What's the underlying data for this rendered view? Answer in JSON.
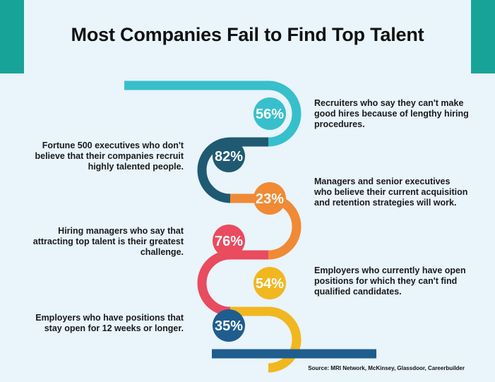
{
  "title": "Most Companies Fail to Find Top Talent",
  "colors": {
    "background": "#e9f4fb",
    "corner": "#17a398",
    "teal": "#38bfcc",
    "dark_teal": "#1f5a72",
    "orange": "#f08a34",
    "red": "#e94b5f",
    "yellow": "#f1b71f",
    "blue": "#1f5d8f"
  },
  "stats": [
    {
      "percent": "56%",
      "value": 56,
      "color": "#38bfcc",
      "side": "right",
      "description": "Recruiters who say they can't make good hires because of lengthy hiring procedures."
    },
    {
      "percent": "82%",
      "value": 82,
      "color": "#1f5a72",
      "side": "left",
      "description": "Fortune 500 executives who don't believe that their companies recruit highly talented people."
    },
    {
      "percent": "23%",
      "value": 23,
      "color": "#f08a34",
      "side": "right",
      "description": "Managers and senior executives who believe their current acquisition and retention strategies will work."
    },
    {
      "percent": "76%",
      "value": 76,
      "color": "#e94b5f",
      "side": "left",
      "description": "Hiring managers who say that attracting top talent is their greatest challenge."
    },
    {
      "percent": "54%",
      "value": 54,
      "color": "#f1b71f",
      "side": "right",
      "description": "Employers who currently have open positions for which they can't find qualified candidates."
    },
    {
      "percent": "35%",
      "value": 35,
      "color": "#1f5d8f",
      "side": "left",
      "description": "Employers who have positions that stay open for 12 weeks or longer."
    }
  ],
  "source": "Source: MRI Network, McKinsey, Glassdoor, Careerbuilder"
}
